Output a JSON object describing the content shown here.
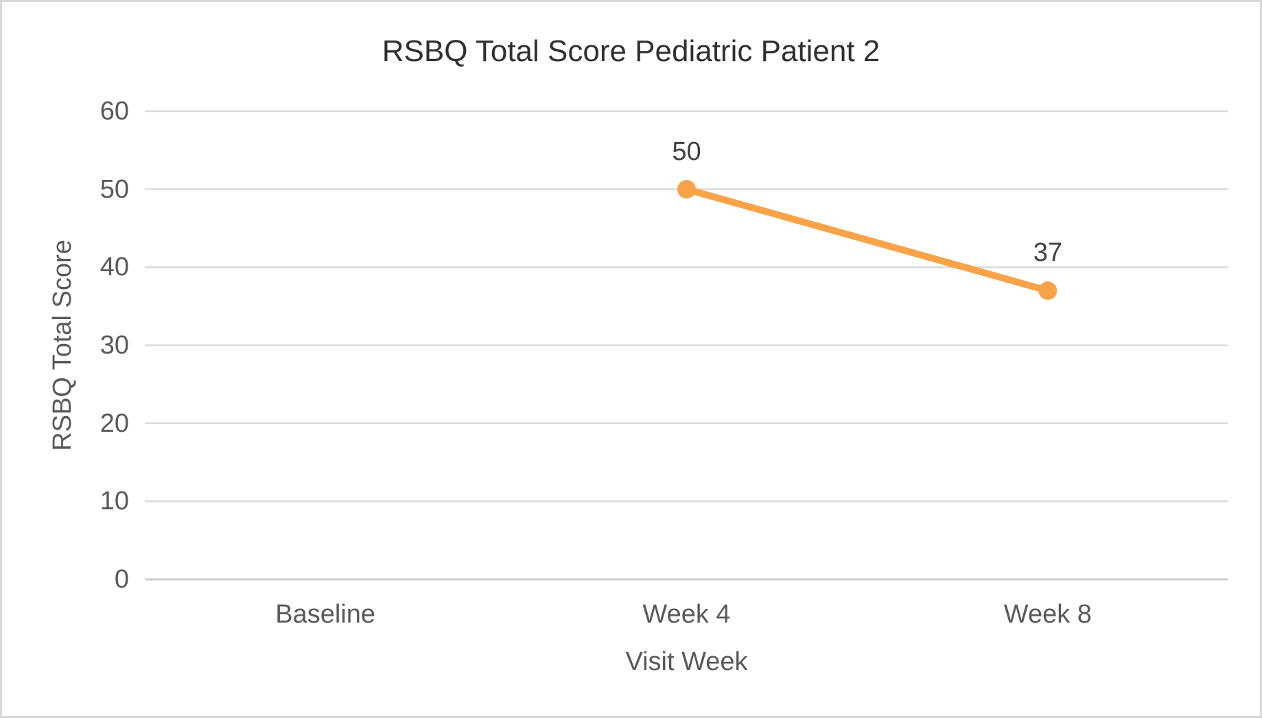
{
  "window": {
    "background": "#FFFFFF",
    "border_color": "#D8D8D8"
  },
  "chart_data": {
    "type": "line",
    "title": "RSBQ Total Score Pediatric Patient 2",
    "xlabel": "Visit Week",
    "ylabel": "RSBQ Total Score",
    "categories": [
      "Baseline",
      "Week 4",
      "Week 8"
    ],
    "series": [
      {
        "name": "RSBQ Total Score",
        "values": [
          null,
          50,
          37
        ],
        "color": "#F9A348",
        "marker": "circle"
      }
    ],
    "data_labels": [
      null,
      "50",
      "37"
    ],
    "ylim": [
      0,
      60
    ],
    "yticks": [
      0,
      10,
      20,
      30,
      40,
      50,
      60
    ],
    "ytick_step": 10,
    "grid": "horizontal",
    "gridline_color": "#D9D9D9",
    "axis_line_color": "#CDCDCD",
    "tick_label_color": "#595959",
    "axis_title_color": "#595959",
    "title_color": "#303030",
    "data_label_color": "#404040",
    "legend": "none"
  }
}
